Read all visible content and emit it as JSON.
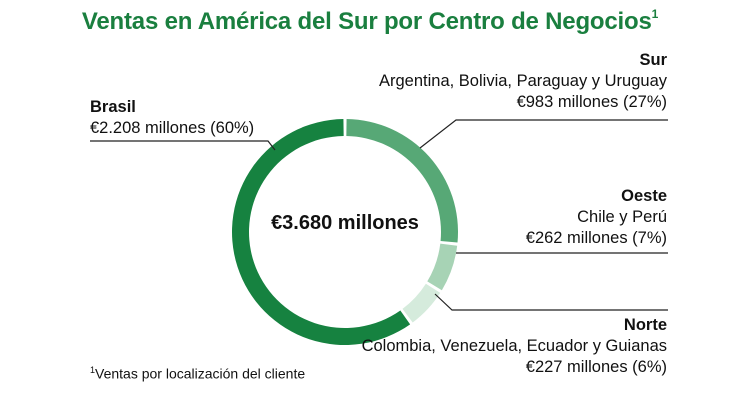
{
  "title": "Ventas en América del Sur por Centro de Negocios",
  "title_marker": "1",
  "footnote_marker": "1",
  "footnote": "Ventas por localización del cliente",
  "chart_data": {
    "type": "pie",
    "center_label": "€3.680 millones",
    "total": 3680,
    "slices": [
      {
        "name": "Sur",
        "detail": "Argentina, Bolivia, Paraguay y Uruguay",
        "value": 983,
        "percent": 27,
        "label": "€983 millones (27%)",
        "color": "#57a876"
      },
      {
        "name": "Oeste",
        "detail": "Chile y Perú",
        "value": 262,
        "percent": 7,
        "label": "€262 millones (7%)",
        "color": "#a7d3b5"
      },
      {
        "name": "Norte",
        "detail": "Colombia, Venezuela, Ecuador y Guianas",
        "value": 227,
        "percent": 6,
        "label": "€227 millones (6%)",
        "color": "#d5ebdc"
      },
      {
        "name": "Brasil",
        "detail": "",
        "value": 2208,
        "percent": 60,
        "label": "€2.208 millones (60%)",
        "color": "#168240"
      }
    ]
  }
}
